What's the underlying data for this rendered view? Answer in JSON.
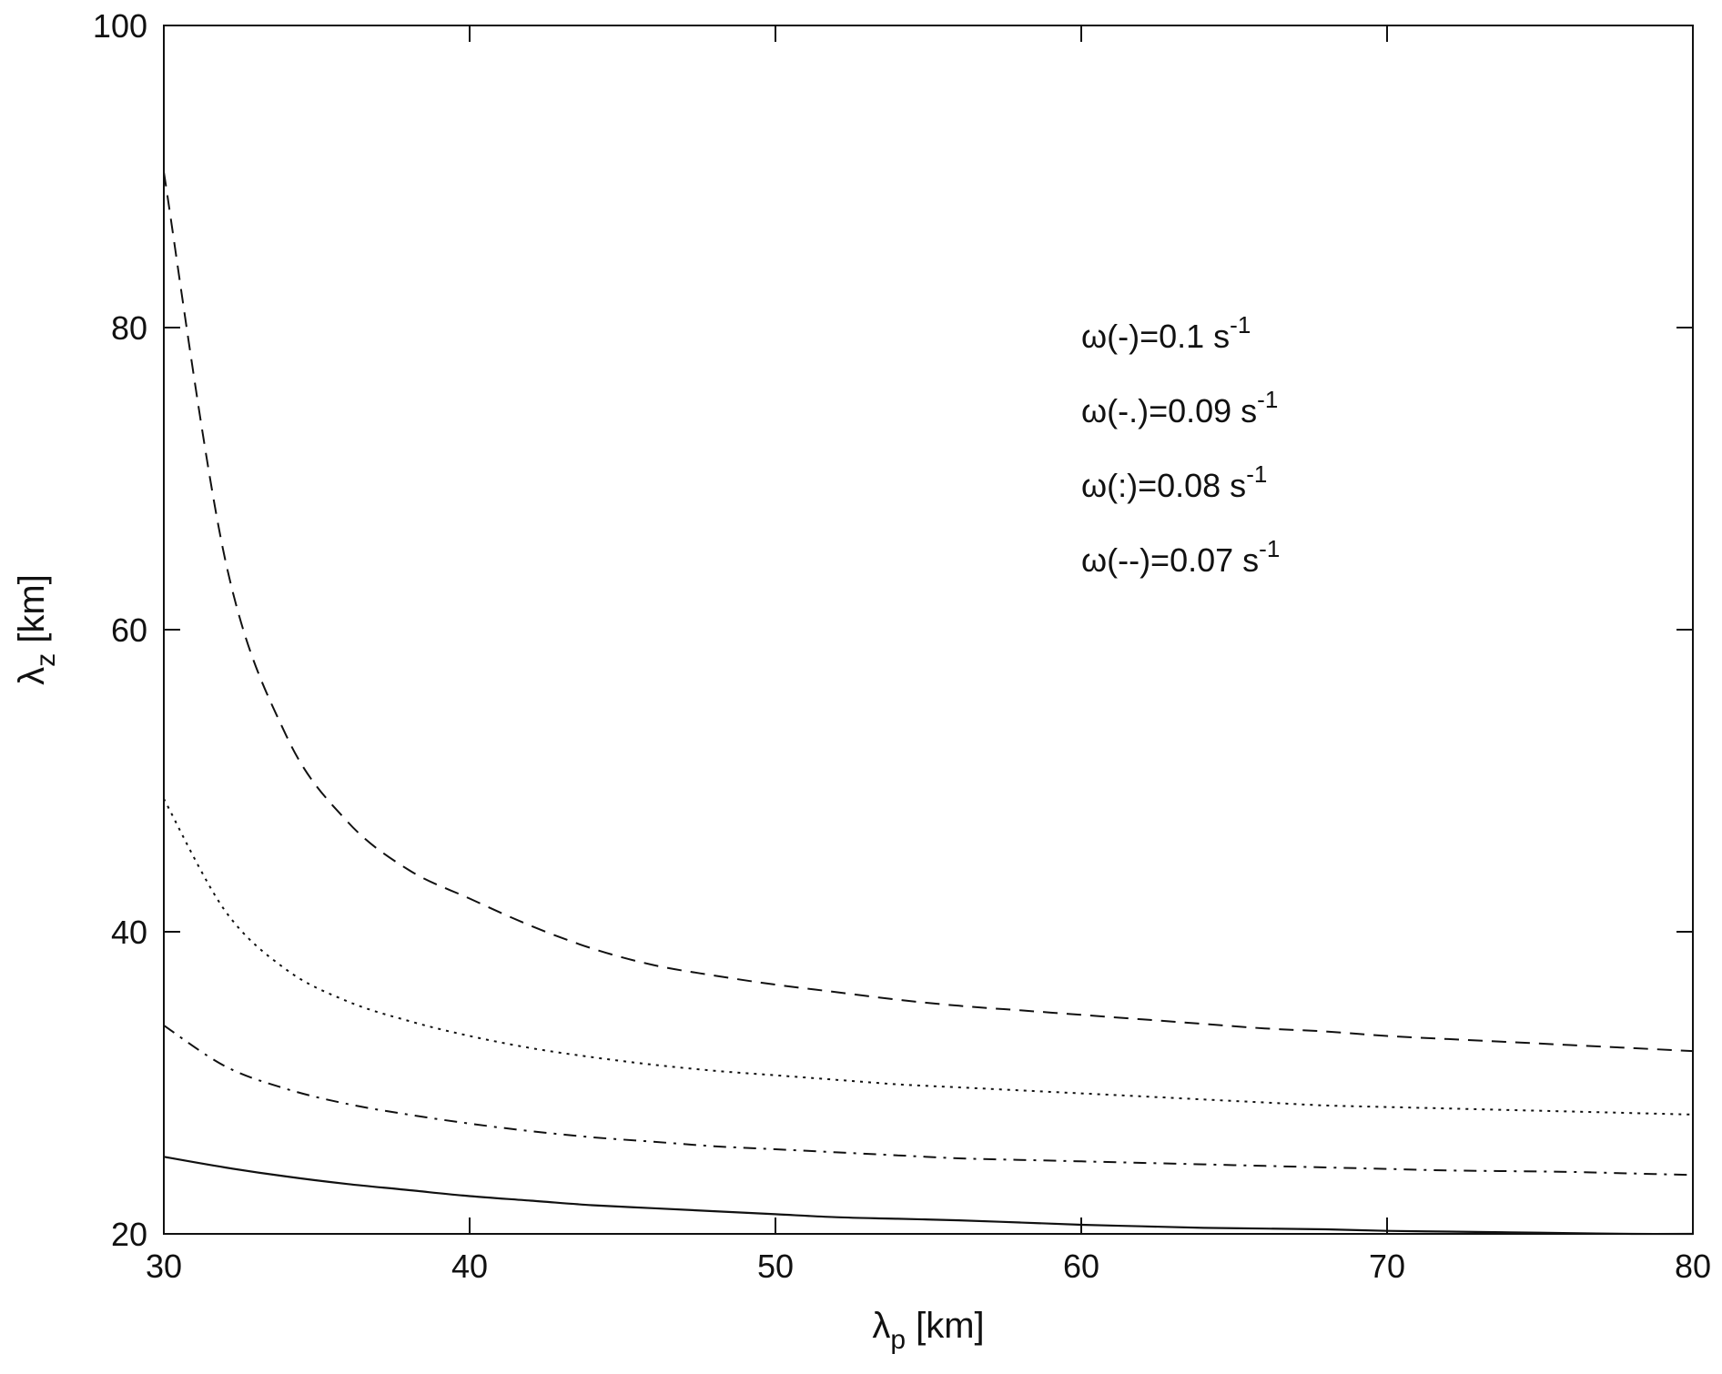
{
  "chart_data": {
    "type": "line",
    "title": "",
    "xlabel": {
      "symbol": "λ",
      "sub": "p",
      "unit": " [km]"
    },
    "ylabel": {
      "symbol": "λ",
      "sub": "z",
      "unit": " [km]"
    },
    "xlim": [
      30,
      80
    ],
    "ylim": [
      20,
      100
    ],
    "xticks": [
      30,
      40,
      50,
      60,
      70,
      80
    ],
    "yticks": [
      20,
      40,
      60,
      80,
      100
    ],
    "grid": false,
    "annotations": [
      {
        "text": "ω(-)=0.1 s",
        "sup": "-1"
      },
      {
        "text": "ω(-.)=0.09 s",
        "sup": "-1"
      },
      {
        "text": "ω(:)=0.08 s",
        "sup": "-1"
      },
      {
        "text": "ω(--)=0.07 s",
        "sup": "-1"
      }
    ],
    "x": [
      30,
      32,
      34,
      36,
      38,
      40,
      42,
      44,
      46,
      48,
      50,
      52,
      54,
      56,
      58,
      60,
      62,
      64,
      66,
      68,
      70,
      72,
      74,
      76,
      78,
      80
    ],
    "series": [
      {
        "style": "solid",
        "values": [
          25.1,
          24.4,
          23.8,
          23.3,
          22.9,
          22.5,
          22.2,
          21.9,
          21.7,
          21.5,
          21.3,
          21.1,
          21.0,
          20.9,
          20.75,
          20.6,
          20.5,
          20.4,
          20.35,
          20.3,
          20.2,
          20.15,
          20.1,
          20.05,
          20.0,
          20.0
        ]
      },
      {
        "style": "dashdot",
        "values": [
          33.8,
          31.1,
          29.6,
          28.6,
          27.9,
          27.3,
          26.8,
          26.4,
          26.1,
          25.8,
          25.6,
          25.4,
          25.2,
          25.0,
          24.9,
          24.8,
          24.7,
          24.6,
          24.5,
          24.4,
          24.3,
          24.2,
          24.15,
          24.1,
          24.0,
          23.9
        ]
      },
      {
        "style": "dotted",
        "values": [
          48.8,
          41.4,
          37.5,
          35.4,
          34.1,
          33.1,
          32.3,
          31.7,
          31.2,
          30.8,
          30.5,
          30.2,
          29.9,
          29.7,
          29.5,
          29.3,
          29.1,
          28.9,
          28.7,
          28.5,
          28.4,
          28.3,
          28.2,
          28.1,
          28.0,
          27.9
        ]
      },
      {
        "style": "dashed",
        "values": [
          90.3,
          64.7,
          53.0,
          47.3,
          44.1,
          42.2,
          40.4,
          38.9,
          37.8,
          37.1,
          36.5,
          36.0,
          35.5,
          35.1,
          34.8,
          34.5,
          34.2,
          33.9,
          33.6,
          33.4,
          33.1,
          32.9,
          32.7,
          32.5,
          32.3,
          32.1
        ]
      }
    ]
  }
}
